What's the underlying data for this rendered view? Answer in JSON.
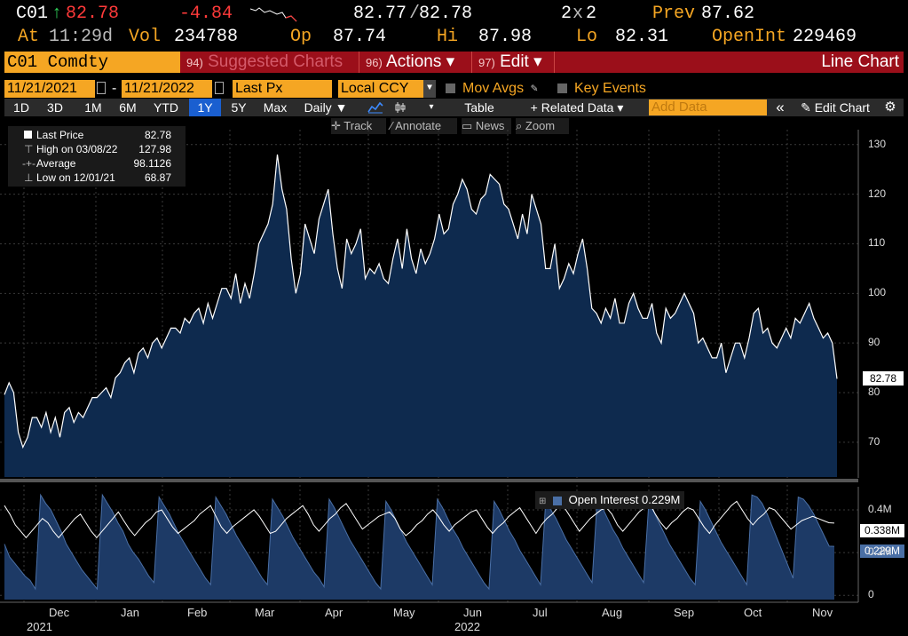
{
  "quote": {
    "ticker": "C01",
    "arrow": "↑",
    "last": "82.78",
    "change": "-4.84",
    "bid_ask": "82.77",
    "slash": "/",
    "ask": "82.78",
    "size_a": "2",
    "size_x": "x",
    "size_b": "2",
    "prev_label": "Prev",
    "prev_value": "87.62",
    "at_label": "At",
    "time": "11:29d",
    "vol_label": "Vol",
    "vol_value": "234788",
    "op_label": "Op",
    "op_value": "87.74",
    "hi_label": "Hi",
    "hi_value": "87.98",
    "lo_label": "Lo",
    "lo_value": "82.31",
    "oi_label": "OpenInt",
    "oi_value": "229469"
  },
  "command_bar": {
    "security": "C01 Comdty",
    "suggested_num": "94)",
    "suggested_label": "Suggested Charts",
    "actions_num": "96)",
    "actions_label": "Actions ▾",
    "edit_num": "97)",
    "edit_label": "Edit ▾",
    "title": "Line Chart"
  },
  "settings": {
    "start_date": "11/21/2021",
    "dash": "-",
    "end_date": "11/21/2022",
    "field": "Last Px",
    "currency": "Local CCY",
    "mov_avgs": "Mov Avgs",
    "key_events": "Key Events"
  },
  "toolbar": {
    "ranges": [
      "1D",
      "3D",
      "1M",
      "6M",
      "YTD",
      "1Y",
      "5Y",
      "Max"
    ],
    "selected_range": "1Y",
    "period": "Daily ▼",
    "table": "Table",
    "related": "+ Related Data ▾",
    "add_data_placeholder": "Add Data",
    "collapse": "«",
    "edit_chart": "Edit Chart",
    "track": "Track",
    "annotate": "Annotate",
    "news": "News",
    "zoom": "Zoom"
  },
  "legend": {
    "rows": [
      {
        "label": "Last Price",
        "value": "82.78"
      },
      {
        "label": "High on 03/08/22",
        "value": "127.98"
      },
      {
        "label": "Average",
        "value": "98.1126"
      },
      {
        "label": "Low on 12/01/21",
        "value": "68.87"
      }
    ]
  },
  "colors": {
    "accent_orange": "#f5a623",
    "command_red": "#9b0f1a",
    "area_fill": "#0e2a4e",
    "oi_fill": "#1d3a66",
    "selected_blue": "#1a5fd0"
  },
  "chart_data": {
    "type": "area",
    "ylim": [
      63,
      133
    ],
    "y_ticks": [
      "130",
      "120",
      "110",
      "100",
      "90",
      "80",
      "70"
    ],
    "x_ticks": [
      "Dec",
      "Jan",
      "Feb",
      "Mar",
      "Apr",
      "May",
      "Jun",
      "Jul",
      "Aug",
      "Sep",
      "Oct",
      "Nov"
    ],
    "year_labels": [
      "2021",
      "2022"
    ],
    "last_price_tag": "82.78",
    "series": [
      {
        "name": "Last Price",
        "values": [
          79.6,
          82,
          80,
          72,
          69,
          71,
          75,
          75,
          73,
          76,
          72,
          75,
          71,
          76,
          77,
          74,
          76,
          75,
          77,
          79,
          79,
          80,
          81,
          79,
          83,
          84,
          86,
          87,
          84,
          88,
          89,
          87,
          90,
          91,
          89,
          91,
          93,
          93,
          92,
          95,
          94,
          96,
          97,
          94,
          98,
          95,
          98,
          101,
          101,
          99,
          104,
          98,
          102,
          99,
          104,
          110,
          112,
          114,
          118,
          128,
          121,
          117,
          107,
          100,
          104,
          114,
          111,
          108,
          115,
          118,
          121,
          112,
          105,
          101,
          111,
          108,
          110,
          113,
          103,
          105,
          104,
          106,
          103,
          102,
          107,
          111,
          105,
          113,
          107,
          104,
          109,
          106,
          108,
          111,
          116,
          112,
          113,
          118,
          120,
          123,
          121,
          117,
          116,
          119,
          120,
          124,
          123,
          122,
          118,
          117,
          114,
          111,
          116,
          112,
          120,
          117,
          114,
          105,
          105,
          110,
          101,
          103,
          106,
          104,
          108,
          111,
          105,
          97,
          96,
          94,
          97,
          95,
          99,
          94,
          94,
          98,
          100,
          97,
          95,
          95,
          98,
          92,
          90,
          97,
          95,
          96,
          98,
          100,
          98,
          96,
          90,
          91,
          89,
          87,
          87,
          90,
          84,
          87,
          90,
          90,
          87,
          91,
          96,
          97,
          92,
          93,
          90,
          89,
          91,
          93,
          91,
          95,
          94,
          96,
          98,
          95,
          93,
          91,
          92,
          90,
          82.8
        ]
      },
      {
        "name": "Open Interest",
        "values": [
          0.24,
          0.18,
          0.15,
          0.12,
          0.09,
          0.07,
          0.03,
          0.47,
          0.43,
          0.4,
          0.35,
          0.3,
          0.24,
          0.2,
          0.16,
          0.12,
          0.09,
          0.06,
          0.03,
          0.47,
          0.43,
          0.39,
          0.34,
          0.3,
          0.24,
          0.2,
          0.17,
          0.13,
          0.09,
          0.06,
          0.46,
          0.42,
          0.38,
          0.33,
          0.28,
          0.24,
          0.2,
          0.16,
          0.12,
          0.08,
          0.05,
          0.46,
          0.42,
          0.38,
          0.33,
          0.28,
          0.24,
          0.2,
          0.16,
          0.12,
          0.08,
          0.05,
          0.45,
          0.41,
          0.37,
          0.32,
          0.27,
          0.23,
          0.19,
          0.15,
          0.11,
          0.08,
          0.04,
          0.45,
          0.41,
          0.36,
          0.31,
          0.26,
          0.22,
          0.18,
          0.14,
          0.1,
          0.06,
          0.03,
          0.44,
          0.4,
          0.35,
          0.3,
          0.25,
          0.21,
          0.17,
          0.13,
          0.09,
          0.05,
          0.45,
          0.41,
          0.36,
          0.31,
          0.27,
          0.22,
          0.18,
          0.14,
          0.1,
          0.06,
          0.03,
          0.44,
          0.4,
          0.35,
          0.3,
          0.26,
          0.21,
          0.17,
          0.13,
          0.09,
          0.05,
          0.44,
          0.4,
          0.36,
          0.31,
          0.26,
          0.22,
          0.18,
          0.14,
          0.1,
          0.06,
          0.45,
          0.41,
          0.36,
          0.31,
          0.27,
          0.22,
          0.18,
          0.14,
          0.1,
          0.06,
          0.43,
          0.39,
          0.34,
          0.29,
          0.24,
          0.2,
          0.16,
          0.12,
          0.08,
          0.05,
          0.44,
          0.4,
          0.35,
          0.3,
          0.25,
          0.21,
          0.17,
          0.13,
          0.09,
          0.05,
          0.47,
          0.46,
          0.43,
          0.38,
          0.32,
          0.26,
          0.2,
          0.14,
          0.08,
          0.46,
          0.45,
          0.42,
          0.38,
          0.33,
          0.28,
          0.23,
          0.229
        ]
      },
      {
        "name": "Open Interest (line)",
        "values": [
          0.42,
          0.38,
          0.33,
          0.3,
          0.27,
          0.3,
          0.33,
          0.36,
          0.34,
          0.3,
          0.27,
          0.3,
          0.33,
          0.36,
          0.38,
          0.34,
          0.3,
          0.27,
          0.3,
          0.33,
          0.36,
          0.39,
          0.35,
          0.31,
          0.28,
          0.31,
          0.34,
          0.36,
          0.39,
          0.4,
          0.36,
          0.32,
          0.29,
          0.31,
          0.33,
          0.35,
          0.38,
          0.4,
          0.42,
          0.37,
          0.32,
          0.29,
          0.32,
          0.34,
          0.36,
          0.38,
          0.4,
          0.37,
          0.33,
          0.29,
          0.3,
          0.33,
          0.36,
          0.38,
          0.4,
          0.42,
          0.38,
          0.33,
          0.3,
          0.33,
          0.36,
          0.38,
          0.41,
          0.43,
          0.39,
          0.35,
          0.31,
          0.33,
          0.35,
          0.37,
          0.38,
          0.39,
          0.36,
          0.31,
          0.28,
          0.3,
          0.33,
          0.35,
          0.38,
          0.4,
          0.37,
          0.33,
          0.3,
          0.33,
          0.35,
          0.37,
          0.39,
          0.4,
          0.36,
          0.32,
          0.29,
          0.32,
          0.34,
          0.37,
          0.39,
          0.41,
          0.37,
          0.33,
          0.29,
          0.33,
          0.36,
          0.38,
          0.41,
          0.42,
          0.38,
          0.34,
          0.3,
          0.33,
          0.36,
          0.38,
          0.4,
          0.41,
          0.38,
          0.33,
          0.3,
          0.33,
          0.36,
          0.39,
          0.41,
          0.43,
          0.38,
          0.34,
          0.31,
          0.34,
          0.36,
          0.39,
          0.41,
          0.4,
          0.36,
          0.32,
          0.29,
          0.33,
          0.36,
          0.39,
          0.42,
          0.44,
          0.4,
          0.36,
          0.33,
          0.36,
          0.38,
          0.41,
          0.4,
          0.37,
          0.34,
          0.31,
          0.33,
          0.35,
          0.36,
          0.37,
          0.36,
          0.35,
          0.34,
          0.338
        ]
      }
    ],
    "oi_ylim": [
      -0.02,
      0.5
    ],
    "oi_ticks": [
      "0.4M",
      "0.2M",
      "0"
    ],
    "oi_tags": [
      "0.338M",
      "0.229M"
    ],
    "oi_legend": "Open Interest 0.229M"
  }
}
